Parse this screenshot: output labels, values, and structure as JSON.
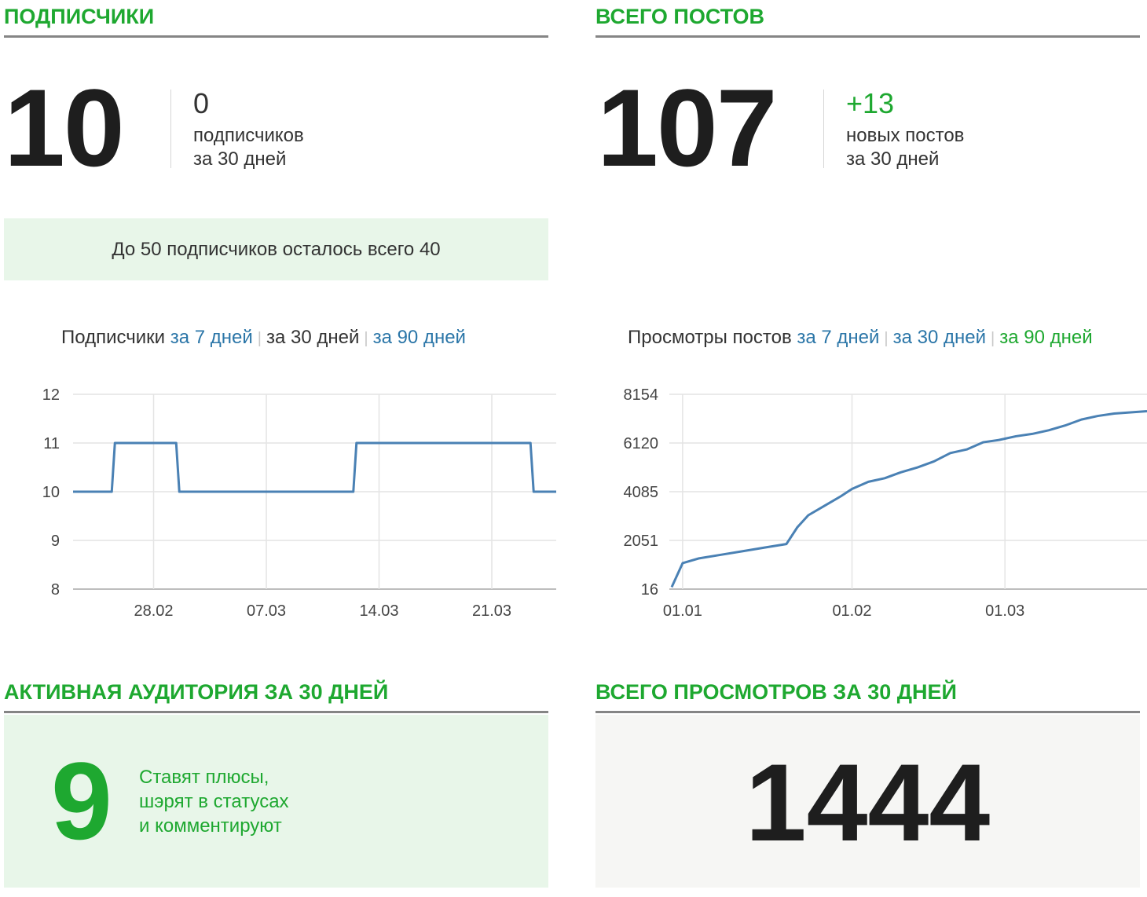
{
  "subscribers": {
    "title": "ПОДПИСЧИКИ",
    "count": "10",
    "delta": "0",
    "delta_line1": "подписчиков",
    "delta_line2": "за 30 дней",
    "banner": "До 50 подписчиков осталось всего 40",
    "chart_label": "Подписчики",
    "tabs": [
      "за 7 дней",
      "за 30 дней",
      "за 90 дней"
    ],
    "active_tab": 1
  },
  "posts": {
    "title": "ВСЕГО ПОСТОВ",
    "count": "107",
    "delta": "+13",
    "delta_color": "#1ea830",
    "delta_line1": "новых постов",
    "delta_line2": "за 30 дней"
  },
  "views_chart": {
    "label": "Просмотры постов",
    "tabs": [
      "за 7 дней",
      "за 30 дней",
      "за 90 дней"
    ]
  },
  "active_audience": {
    "title": "АКТИВНАЯ АУДИТОРИЯ ЗА 30 ДНЕЙ",
    "count": "9",
    "line1": "Ставят плюсы,",
    "line2": "шэрят в статусах",
    "line3": "и комментируют"
  },
  "total_views": {
    "title": "ВСЕГО ПРОСМОТРОВ ЗА 30 ДНЕЙ",
    "count": "1444"
  },
  "colors": {
    "accent_green": "#1ea830",
    "link_blue": "#2b76a8",
    "line_blue": "#4a81b4",
    "banner_bg": "#e8f6e9"
  },
  "chart_data": [
    {
      "type": "line",
      "ylim": [
        8,
        12
      ],
      "yticks": [
        "12",
        "11",
        "10",
        "9",
        "8"
      ],
      "xticks": [
        "28.02",
        "07.03",
        "14.03",
        "21.03"
      ],
      "x": [
        "23.02",
        "24.02",
        "25.02",
        "26.02",
        "27.02",
        "28.02",
        "01.03",
        "02.03",
        "03.03",
        "04.03",
        "05.03",
        "06.03",
        "07.03",
        "08.03",
        "09.03",
        "10.03",
        "11.03",
        "12.03",
        "13.03",
        "14.03",
        "15.03",
        "16.03",
        "17.03",
        "18.03",
        "19.03",
        "20.03",
        "21.03",
        "22.03",
        "23.03",
        "24.03",
        "25.03"
      ],
      "y": [
        10,
        10,
        10,
        11,
        11,
        11,
        11,
        10,
        10,
        10,
        10,
        10,
        10,
        10,
        10,
        10,
        10,
        10,
        11,
        11,
        11,
        11,
        11,
        11,
        11,
        11,
        11,
        11,
        11,
        10,
        10
      ],
      "grid": true,
      "series_color": "#4a81b4"
    },
    {
      "type": "line",
      "ylim": [
        16,
        8154
      ],
      "yticks": [
        "8154",
        "6120",
        "4085",
        "2051",
        "16"
      ],
      "xticks": [
        "01.01",
        "01.02",
        "01.03"
      ],
      "x": [
        "30.12",
        "01.01",
        "04.01",
        "08.01",
        "12.01",
        "16.01",
        "20.01",
        "22.01",
        "24.01",
        "27.01",
        "30.01",
        "01.02",
        "04.02",
        "07.02",
        "10.02",
        "13.02",
        "16.02",
        "19.02",
        "22.02",
        "25.02",
        "28.02",
        "03.03",
        "06.03",
        "09.03",
        "12.03",
        "15.03",
        "18.03",
        "21.03",
        "24.03",
        "27.03"
      ],
      "y": [
        100,
        1100,
        1300,
        1450,
        1600,
        1750,
        1900,
        2600,
        3100,
        3500,
        3900,
        4200,
        4500,
        4650,
        4900,
        5100,
        5350,
        5700,
        5850,
        6150,
        6250,
        6400,
        6500,
        6650,
        6850,
        7100,
        7250,
        7350,
        7400,
        7450
      ],
      "grid": true,
      "series_color": "#4a81b4"
    }
  ]
}
